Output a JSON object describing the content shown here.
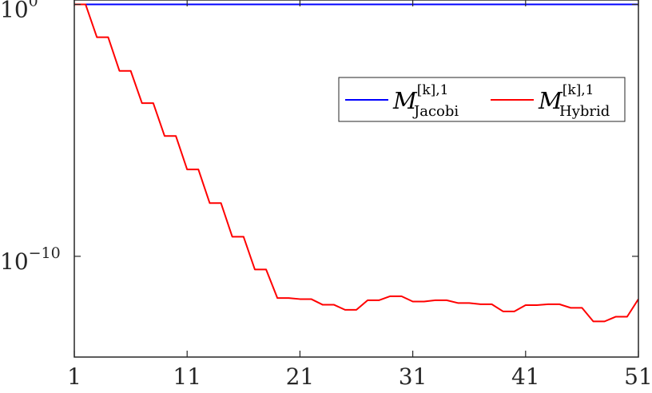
{
  "chart_data": {
    "type": "line",
    "title": "",
    "xlabel": "",
    "ylabel": "",
    "xlim": [
      1,
      51
    ],
    "ylim": [
      1e-14,
      1.5
    ],
    "yscale": "log",
    "grid": false,
    "legend_placement": "top-right",
    "x_ticks": [
      1,
      11,
      21,
      31,
      41,
      51
    ],
    "x_tick_labels": [
      "1",
      "11",
      "21",
      "31",
      "41",
      "51"
    ],
    "y_ticks": [
      {
        "value": 1,
        "base": "10",
        "exponent": "0"
      },
      {
        "value": 1e-10,
        "base": "10",
        "exponent": "−10"
      }
    ],
    "x": [
      1,
      2,
      3,
      4,
      5,
      6,
      7,
      8,
      9,
      10,
      11,
      12,
      13,
      14,
      15,
      16,
      17,
      18,
      19,
      20,
      21,
      22,
      23,
      24,
      25,
      26,
      27,
      28,
      29,
      30,
      31,
      32,
      33,
      34,
      35,
      36,
      37,
      38,
      39,
      40,
      41,
      42,
      43,
      44,
      45,
      46,
      47,
      48,
      49,
      50,
      51
    ],
    "series": [
      {
        "name": "M Jacobi",
        "legend_base": "M",
        "legend_sup": "[k],1",
        "legend_sub": "Jacobi",
        "color": "#0000ff",
        "values": [
          1,
          1,
          1,
          1,
          1,
          1,
          1,
          1,
          1,
          1,
          1,
          1,
          1,
          1,
          1,
          1,
          1,
          1,
          1,
          1,
          1,
          1,
          1,
          1,
          1,
          1,
          1,
          1,
          1,
          1,
          1,
          1,
          1,
          1,
          1,
          1,
          1,
          1,
          1,
          1,
          1,
          1,
          1,
          1,
          1,
          1,
          1,
          1,
          1,
          1,
          1
        ]
      },
      {
        "name": "M Hybrid",
        "legend_base": "M",
        "legend_sup": "[k],1",
        "legend_sub": "Hybrid",
        "color": "#ff0000",
        "values": [
          1,
          1,
          0.05,
          0.05,
          0.0023,
          0.0023,
          0.00012,
          0.00012,
          6e-06,
          6e-06,
          2.8e-07,
          2.8e-07,
          1.3e-08,
          1.3e-08,
          6e-10,
          6e-10,
          3e-11,
          3e-11,
          2.2e-12,
          2.2e-12,
          2e-12,
          2e-12,
          1.2e-12,
          1.2e-12,
          7.5e-13,
          7.5e-13,
          1.8e-12,
          1.8e-12,
          2.6e-12,
          2.6e-12,
          1.6e-12,
          1.6e-12,
          1.8e-12,
          1.8e-12,
          1.4e-12,
          1.4e-12,
          1.25e-12,
          1.25e-12,
          6.5e-13,
          6.5e-13,
          1.15e-12,
          1.15e-12,
          1.25e-12,
          1.25e-12,
          9e-13,
          9e-13,
          2.6e-13,
          2.6e-13,
          4e-13,
          4e-13,
          2e-12
        ]
      }
    ]
  }
}
